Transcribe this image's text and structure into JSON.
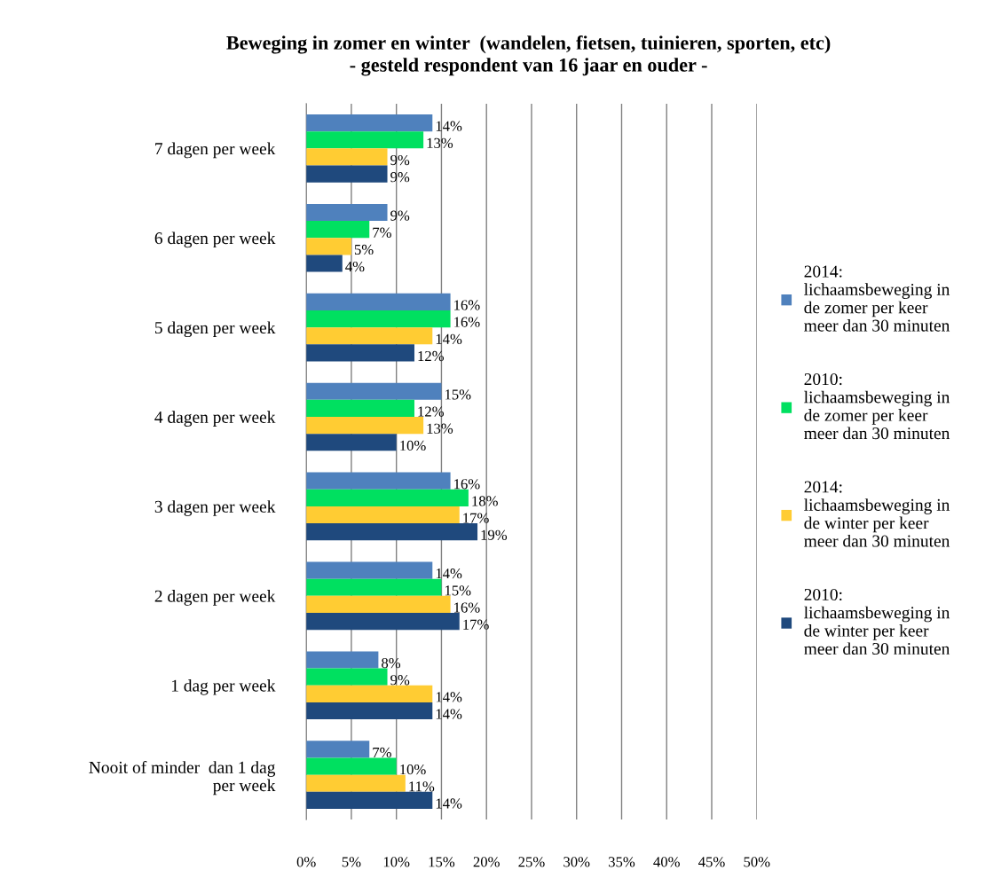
{
  "chart_data": {
    "type": "bar",
    "orientation": "horizontal",
    "title": "Beweging in zomer en winter  (wandelen, fietsen, tuinieren, sporten, etc)\n- gesteld respondent van 16 jaar en ouder -",
    "categories": [
      "7 dagen per week",
      "6 dagen per week",
      "5 dagen per week",
      "4 dagen per week",
      "3 dagen per week",
      "2 dagen per week",
      "1 dag per week",
      "Nooit of minder  dan 1 dag\nper week"
    ],
    "series": [
      {
        "name": "2014:\nlichaamsbeweging in\nde zomer per keer\nmeer dan 30 minuten",
        "color": "#4f81bd",
        "values": [
          14,
          9,
          16,
          15,
          16,
          14,
          8,
          7
        ],
        "value_labels": [
          "14%",
          "9%",
          "16%",
          "15%",
          "16%",
          "14%",
          "8%",
          "7%"
        ]
      },
      {
        "name": "2010:\nlichaamsbeweging in\nde zomer per keer\nmeer dan 30 minuten",
        "color": "#00e060",
        "values": [
          13,
          7,
          16,
          12,
          18,
          15,
          9,
          10
        ],
        "value_labels": [
          "13%",
          "7%",
          "16%",
          "12%",
          "18%",
          "15%",
          "9%",
          "10%"
        ]
      },
      {
        "name": "2014:\nlichaamsbeweging in\nde winter per keer\nmeer dan 30 minuten",
        "color": "#ffcc33",
        "values": [
          9,
          5,
          14,
          13,
          17,
          16,
          14,
          11
        ],
        "value_labels": [
          "9%",
          "5%",
          "14%",
          "13%",
          "17%",
          "16%",
          "14%",
          "11%"
        ]
      },
      {
        "name": "2010:\nlichaamsbeweging in\nde winter per keer\nmeer dan 30 minuten",
        "color": "#1f497d",
        "values": [
          9,
          4,
          12,
          10,
          19,
          17,
          14,
          14
        ],
        "value_labels": [
          "9%",
          "4%",
          "12%",
          "10%",
          "19%",
          "17%",
          "14%",
          "14%"
        ]
      }
    ],
    "xlim": [
      0,
      50
    ],
    "xticks": [
      {
        "value": 0,
        "label": "0%"
      },
      {
        "value": 5,
        "label": "5%"
      },
      {
        "value": 10,
        "label": "10%"
      },
      {
        "value": 15,
        "label": "15%"
      },
      {
        "value": 20,
        "label": "20%"
      },
      {
        "value": 25,
        "label": "25%"
      },
      {
        "value": 30,
        "label": "30%"
      },
      {
        "value": 35,
        "label": "35%"
      },
      {
        "value": 40,
        "label": "40%"
      },
      {
        "value": 45,
        "label": "45%"
      },
      {
        "value": 50,
        "label": "50%"
      }
    ],
    "grid": "x",
    "legend": "right"
  }
}
